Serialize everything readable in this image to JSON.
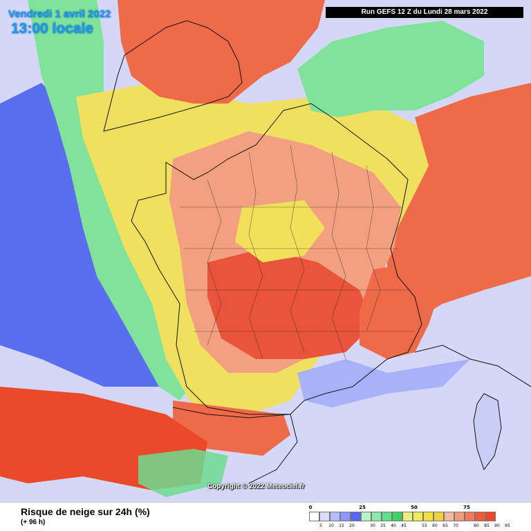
{
  "header": {
    "date": "Vendredi 1 avril 2022",
    "time": "13:00 locale",
    "run": "Run GEFS 12 Z du Lundi 28 mars 2022"
  },
  "copyright": "Copyright © 2022 Meteociel.fr",
  "footer": {
    "variable": "Risque de neige sur 24h (%)",
    "lead": "(+ 96 h)"
  },
  "legend": {
    "major_labels": [
      "0",
      "25",
      "50",
      "75"
    ],
    "minor_labels": [
      "5",
      "10",
      "15",
      "20",
      "30",
      "35",
      "40",
      "45",
      "55",
      "60",
      "65",
      "70",
      "80",
      "85",
      "90",
      "95"
    ],
    "colors": [
      "#ffffff",
      "#d9dcff",
      "#b4bbff",
      "#8d96ff",
      "#5966f2",
      "#b8f0c8",
      "#8deaa8",
      "#5fe08a",
      "#3fd06a",
      "#e6f07a",
      "#f0ea5a",
      "#f2df3a",
      "#eed23a",
      "#f0b8a0",
      "#f29a7a",
      "#f27a58",
      "#ef5a38",
      "#ea4a2a"
    ]
  }
}
